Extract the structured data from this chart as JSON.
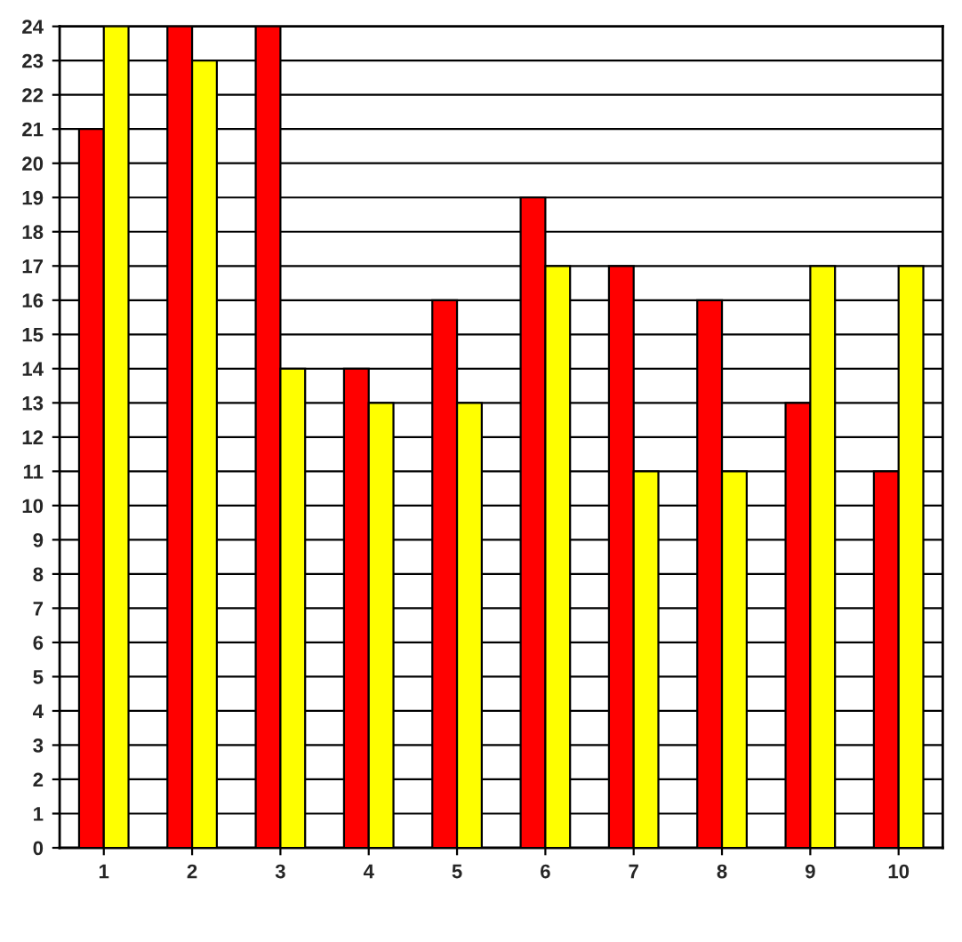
{
  "chart_data": {
    "type": "bar",
    "categories": [
      "1",
      "2",
      "3",
      "4",
      "5",
      "6",
      "7",
      "8",
      "9",
      "10"
    ],
    "series": [
      {
        "color": "#ff0000",
        "values": [
          21,
          24,
          24,
          14,
          16,
          19,
          17,
          16,
          13,
          11
        ]
      },
      {
        "color": "#ffff00",
        "values": [
          24,
          23,
          14,
          13,
          13,
          17,
          11,
          11,
          17,
          17
        ]
      }
    ],
    "ylim": [
      0,
      24
    ],
    "yticks": [
      0,
      1,
      2,
      3,
      4,
      5,
      6,
      7,
      8,
      9,
      10,
      11,
      12,
      13,
      14,
      15,
      16,
      17,
      18,
      19,
      20,
      21,
      22,
      23,
      24
    ],
    "grid": "y",
    "legend": false
  }
}
